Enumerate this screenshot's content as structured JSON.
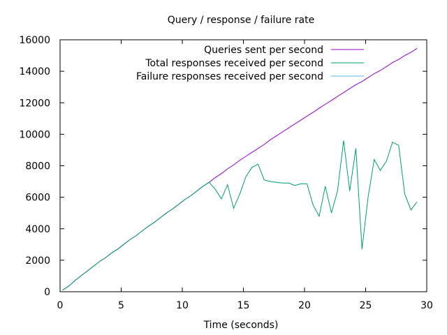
{
  "chart_data": {
    "type": "line",
    "title": "Query / response / failure rate",
    "xlabel": "Time (seconds)",
    "ylabel": "",
    "xlim": [
      0,
      30
    ],
    "ylim": [
      0,
      16000
    ],
    "xticks": [
      0,
      5,
      10,
      15,
      20,
      25,
      30
    ],
    "yticks": [
      0,
      2000,
      4000,
      6000,
      8000,
      10000,
      12000,
      14000,
      16000
    ],
    "grid": false,
    "legend_position": "top-right",
    "series": [
      {
        "name": "Queries sent per second",
        "color": "#9400d3",
        "points": [
          [
            0.2,
            100
          ],
          [
            0.7,
            350
          ],
          [
            1.2,
            700
          ],
          [
            1.7,
            1000
          ],
          [
            2.2,
            1300
          ],
          [
            2.7,
            1600
          ],
          [
            3.2,
            1900
          ],
          [
            3.7,
            2150
          ],
          [
            4.2,
            2450
          ],
          [
            4.7,
            2700
          ],
          [
            5.2,
            3000
          ],
          [
            5.7,
            3300
          ],
          [
            6.2,
            3550
          ],
          [
            6.7,
            3850
          ],
          [
            7.2,
            4150
          ],
          [
            7.7,
            4400
          ],
          [
            8.2,
            4700
          ],
          [
            8.7,
            5000
          ],
          [
            9.2,
            5250
          ],
          [
            9.7,
            5550
          ],
          [
            10.2,
            5850
          ],
          [
            10.7,
            6100
          ],
          [
            11.2,
            6400
          ],
          [
            11.7,
            6700
          ],
          [
            12.2,
            6950
          ],
          [
            12.7,
            7250
          ],
          [
            13.2,
            7500
          ],
          [
            13.7,
            7800
          ],
          [
            14.2,
            8050
          ],
          [
            14.7,
            8350
          ],
          [
            15.2,
            8600
          ],
          [
            15.7,
            8850
          ],
          [
            16.2,
            9100
          ],
          [
            16.7,
            9350
          ],
          [
            17.2,
            9650
          ],
          [
            17.7,
            9900
          ],
          [
            18.2,
            10150
          ],
          [
            18.7,
            10400
          ],
          [
            19.2,
            10650
          ],
          [
            19.7,
            10900
          ],
          [
            20.2,
            11150
          ],
          [
            20.7,
            11400
          ],
          [
            21.2,
            11650
          ],
          [
            21.7,
            11900
          ],
          [
            22.2,
            12150
          ],
          [
            22.7,
            12400
          ],
          [
            23.2,
            12650
          ],
          [
            23.7,
            12900
          ],
          [
            24.2,
            13150
          ],
          [
            24.7,
            13350
          ],
          [
            25.2,
            13600
          ],
          [
            25.7,
            13850
          ],
          [
            26.2,
            14050
          ],
          [
            26.7,
            14300
          ],
          [
            27.2,
            14550
          ],
          [
            27.7,
            14750
          ],
          [
            28.2,
            15000
          ],
          [
            28.7,
            15200
          ],
          [
            29.2,
            15450
          ]
        ]
      },
      {
        "name": "Total responses received per second",
        "color": "#009e73",
        "points": [
          [
            0.2,
            100
          ],
          [
            0.7,
            350
          ],
          [
            1.2,
            700
          ],
          [
            1.7,
            1000
          ],
          [
            2.2,
            1300
          ],
          [
            2.7,
            1600
          ],
          [
            3.2,
            1900
          ],
          [
            3.7,
            2150
          ],
          [
            4.2,
            2450
          ],
          [
            4.7,
            2700
          ],
          [
            5.2,
            3000
          ],
          [
            5.7,
            3300
          ],
          [
            6.2,
            3550
          ],
          [
            6.7,
            3850
          ],
          [
            7.2,
            4150
          ],
          [
            7.7,
            4400
          ],
          [
            8.2,
            4700
          ],
          [
            8.7,
            5000
          ],
          [
            9.2,
            5250
          ],
          [
            9.7,
            5550
          ],
          [
            10.2,
            5850
          ],
          [
            10.7,
            6100
          ],
          [
            11.2,
            6400
          ],
          [
            11.7,
            6700
          ],
          [
            12.2,
            6950
          ],
          [
            12.7,
            6500
          ],
          [
            13.2,
            5900
          ],
          [
            13.7,
            6800
          ],
          [
            14.2,
            5300
          ],
          [
            14.7,
            6200
          ],
          [
            15.2,
            7300
          ],
          [
            15.7,
            7900
          ],
          [
            16.2,
            8100
          ],
          [
            16.7,
            7100
          ],
          [
            17.2,
            7000
          ],
          [
            17.7,
            6950
          ],
          [
            18.2,
            6900
          ],
          [
            18.7,
            6900
          ],
          [
            19.2,
            6750
          ],
          [
            19.7,
            6850
          ],
          [
            20.2,
            6850
          ],
          [
            20.7,
            5500
          ],
          [
            21.2,
            4800
          ],
          [
            21.7,
            6700
          ],
          [
            22.2,
            5000
          ],
          [
            22.7,
            6400
          ],
          [
            23.2,
            9600
          ],
          [
            23.7,
            6400
          ],
          [
            24.2,
            9100
          ],
          [
            24.7,
            2700
          ],
          [
            25.2,
            6000
          ],
          [
            25.7,
            8400
          ],
          [
            26.2,
            7700
          ],
          [
            26.7,
            8300
          ],
          [
            27.2,
            9500
          ],
          [
            27.7,
            9300
          ],
          [
            28.2,
            6200
          ],
          [
            28.7,
            5200
          ],
          [
            29.2,
            5700
          ]
        ]
      },
      {
        "name": "Failure responses received per second",
        "color": "#56b4e9",
        "points": []
      }
    ]
  }
}
